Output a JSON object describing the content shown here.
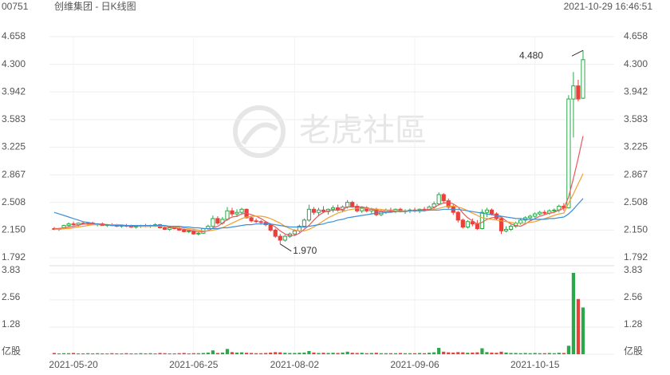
{
  "header": {
    "code": "00751",
    "title": "创维集团 - 日K线图",
    "time": "2021-10-29 16:46:51"
  },
  "watermark": "老虎社區",
  "chart_data": {
    "type": "candlestick",
    "up_color": "#2ba84a",
    "down_color": "#e8403a",
    "grid": true,
    "categories": [
      null,
      null,
      null,
      null,
      "2021-05-20",
      null,
      null,
      null,
      null,
      null,
      null,
      null,
      null,
      null,
      null,
      null,
      null,
      null,
      null,
      null,
      null,
      null,
      null,
      null,
      null,
      null,
      null,
      null,
      null,
      "2021-06-25",
      null,
      null,
      null,
      null,
      null,
      null,
      null,
      null,
      null,
      null,
      null,
      null,
      null,
      null,
      null,
      null,
      null,
      null,
      null,
      null,
      "2021-08-02",
      null,
      null,
      null,
      null,
      null,
      null,
      null,
      null,
      null,
      null,
      null,
      null,
      null,
      null,
      null,
      null,
      null,
      null,
      null,
      null,
      null,
      null,
      null,
      null,
      "2021-09-06",
      null,
      null,
      null,
      null,
      null,
      null,
      null,
      null,
      null,
      null,
      null,
      null,
      null,
      null,
      null,
      null,
      null,
      null,
      null,
      null,
      null,
      null,
      null,
      null,
      "2021-10-15",
      null,
      null,
      null,
      null,
      null,
      null,
      null,
      null,
      null,
      null
    ],
    "open": [
      2.17,
      2.16,
      2.17,
      2.21,
      2.23,
      2.22,
      2.24,
      2.23,
      2.24,
      2.22,
      2.23,
      2.21,
      2.22,
      2.21,
      2.2,
      2.21,
      2.2,
      2.19,
      2.2,
      2.21,
      2.2,
      2.21,
      2.22,
      2.18,
      2.16,
      2.18,
      2.17,
      2.15,
      2.13,
      2.14,
      2.1,
      2.11,
      2.17,
      2.2,
      2.3,
      2.24,
      2.29,
      2.4,
      2.36,
      2.38,
      2.42,
      2.31,
      2.27,
      2.26,
      2.25,
      2.22,
      2.15,
      2.07,
      2.02,
      2.07,
      2.1,
      2.14,
      2.2,
      2.28,
      2.42,
      2.38,
      2.41,
      2.39,
      2.42,
      2.44,
      2.41,
      2.45,
      2.51,
      2.46,
      2.4,
      2.44,
      2.4,
      2.42,
      2.35,
      2.39,
      2.41,
      2.4,
      2.42,
      2.39,
      2.4,
      2.41,
      2.4,
      2.42,
      2.41,
      2.45,
      2.49,
      2.61,
      2.53,
      2.45,
      2.38,
      2.28,
      2.19,
      2.26,
      2.23,
      2.17,
      2.38,
      2.41,
      2.36,
      2.3,
      2.14,
      2.16,
      2.2,
      2.24,
      2.28,
      2.31,
      2.33,
      2.36,
      2.38,
      2.37,
      2.4,
      2.41,
      2.46,
      2.44,
      3.85,
      4.02,
      3.86
    ],
    "high": [
      2.19,
      2.18,
      2.22,
      2.25,
      2.26,
      2.25,
      2.26,
      2.25,
      2.26,
      2.24,
      2.25,
      2.23,
      2.24,
      2.23,
      2.22,
      2.23,
      2.22,
      2.21,
      2.22,
      2.23,
      2.22,
      2.24,
      2.23,
      2.2,
      2.19,
      2.2,
      2.19,
      2.17,
      2.16,
      2.15,
      2.13,
      2.18,
      2.22,
      2.34,
      2.33,
      2.32,
      2.45,
      2.44,
      2.42,
      2.44,
      2.43,
      2.33,
      2.3,
      2.28,
      2.27,
      2.24,
      2.17,
      2.1,
      2.09,
      2.12,
      2.16,
      2.22,
      2.3,
      2.48,
      2.45,
      2.44,
      2.46,
      2.43,
      2.47,
      2.48,
      2.47,
      2.54,
      2.53,
      2.49,
      2.46,
      2.46,
      2.44,
      2.44,
      2.41,
      2.43,
      2.44,
      2.43,
      2.44,
      2.42,
      2.43,
      2.44,
      2.43,
      2.45,
      2.47,
      2.52,
      2.64,
      2.63,
      2.56,
      2.48,
      2.4,
      2.3,
      2.28,
      2.3,
      2.28,
      2.42,
      2.44,
      2.43,
      2.38,
      2.31,
      2.2,
      2.22,
      2.26,
      2.3,
      2.33,
      2.35,
      2.38,
      2.4,
      2.41,
      2.42,
      2.43,
      2.48,
      2.5,
      3.9,
      4.2,
      4.1,
      4.48
    ],
    "low": [
      2.15,
      2.14,
      2.16,
      2.19,
      2.21,
      2.2,
      2.22,
      2.21,
      2.22,
      2.2,
      2.21,
      2.19,
      2.2,
      2.19,
      2.18,
      2.19,
      2.18,
      2.17,
      2.18,
      2.19,
      2.18,
      2.19,
      2.17,
      2.15,
      2.14,
      2.16,
      2.14,
      2.12,
      2.11,
      2.09,
      2.08,
      2.1,
      2.15,
      2.19,
      2.22,
      2.22,
      2.27,
      2.33,
      2.32,
      2.36,
      2.3,
      2.25,
      2.24,
      2.22,
      2.2,
      2.13,
      2.05,
      1.97,
      2.0,
      2.05,
      2.08,
      2.12,
      2.18,
      2.26,
      2.35,
      2.33,
      2.37,
      2.35,
      2.38,
      2.39,
      2.38,
      2.43,
      2.44,
      2.38,
      2.37,
      2.38,
      2.36,
      2.33,
      2.33,
      2.36,
      2.38,
      2.37,
      2.38,
      2.36,
      2.37,
      2.38,
      2.37,
      2.39,
      2.4,
      2.43,
      2.47,
      2.5,
      2.42,
      2.35,
      2.25,
      2.17,
      2.17,
      2.2,
      2.15,
      2.16,
      2.32,
      2.34,
      2.28,
      2.1,
      2.12,
      2.14,
      2.18,
      2.22,
      2.25,
      2.28,
      2.31,
      2.34,
      2.35,
      2.35,
      2.38,
      2.38,
      2.4,
      2.43,
      3.35,
      3.82,
      3.85
    ],
    "close": [
      2.16,
      2.17,
      2.21,
      2.23,
      2.22,
      2.24,
      2.23,
      2.24,
      2.22,
      2.23,
      2.21,
      2.22,
      2.21,
      2.2,
      2.21,
      2.2,
      2.19,
      2.2,
      2.21,
      2.2,
      2.21,
      2.22,
      2.18,
      2.16,
      2.18,
      2.17,
      2.15,
      2.13,
      2.14,
      2.1,
      2.11,
      2.17,
      2.2,
      2.3,
      2.24,
      2.29,
      2.4,
      2.36,
      2.38,
      2.42,
      2.31,
      2.27,
      2.26,
      2.25,
      2.22,
      2.15,
      2.07,
      2.02,
      2.07,
      2.1,
      2.14,
      2.2,
      2.28,
      2.42,
      2.38,
      2.41,
      2.39,
      2.42,
      2.44,
      2.41,
      2.45,
      2.51,
      2.46,
      2.4,
      2.44,
      2.4,
      2.42,
      2.35,
      2.39,
      2.41,
      2.4,
      2.42,
      2.39,
      2.4,
      2.41,
      2.4,
      2.42,
      2.41,
      2.45,
      2.49,
      2.61,
      2.53,
      2.45,
      2.38,
      2.28,
      2.19,
      2.26,
      2.23,
      2.17,
      2.38,
      2.41,
      2.36,
      2.3,
      2.14,
      2.16,
      2.2,
      2.24,
      2.28,
      2.31,
      2.33,
      2.36,
      2.38,
      2.37,
      2.4,
      2.41,
      2.46,
      2.44,
      3.85,
      4.02,
      3.85,
      4.36
    ],
    "volume": [
      0.06,
      0.04,
      0.05,
      0.05,
      0.06,
      0.04,
      0.04,
      0.05,
      0.04,
      0.05,
      0.04,
      0.04,
      0.05,
      0.04,
      0.04,
      0.05,
      0.04,
      0.04,
      0.05,
      0.04,
      0.05,
      0.04,
      0.06,
      0.05,
      0.04,
      0.04,
      0.05,
      0.06,
      0.04,
      0.05,
      0.05,
      0.06,
      0.08,
      0.18,
      0.06,
      0.08,
      0.25,
      0.1,
      0.08,
      0.09,
      0.07,
      0.06,
      0.05,
      0.05,
      0.06,
      0.08,
      0.1,
      0.09,
      0.07,
      0.06,
      0.06,
      0.07,
      0.08,
      0.15,
      0.08,
      0.06,
      0.07,
      0.06,
      0.07,
      0.06,
      0.08,
      0.12,
      0.07,
      0.06,
      0.07,
      0.05,
      0.06,
      0.07,
      0.05,
      0.05,
      0.05,
      0.05,
      0.06,
      0.05,
      0.05,
      0.05,
      0.06,
      0.05,
      0.07,
      0.09,
      0.3,
      0.12,
      0.09,
      0.08,
      0.1,
      0.09,
      0.07,
      0.08,
      0.09,
      0.28,
      0.1,
      0.08,
      0.07,
      0.12,
      0.08,
      0.06,
      0.06,
      0.05,
      0.06,
      0.05,
      0.06,
      0.05,
      0.05,
      0.06,
      0.05,
      0.07,
      0.06,
      0.4,
      3.83,
      2.6,
      2.2
    ],
    "ma_lines": [
      {
        "color": "#e8585a",
        "values": [
          2.17,
          2.17,
          2.18,
          2.19,
          2.2,
          2.21,
          2.23,
          2.23,
          2.23,
          2.23,
          2.23,
          2.22,
          2.22,
          2.21,
          2.21,
          2.21,
          2.2,
          2.2,
          2.2,
          2.2,
          2.2,
          2.21,
          2.2,
          2.2,
          2.19,
          2.18,
          2.17,
          2.16,
          2.15,
          2.14,
          2.13,
          2.13,
          2.14,
          2.18,
          2.2,
          2.24,
          2.29,
          2.32,
          2.33,
          2.36,
          2.37,
          2.35,
          2.33,
          2.3,
          2.26,
          2.23,
          2.19,
          2.14,
          2.1,
          2.08,
          2.08,
          2.11,
          2.16,
          2.21,
          2.28,
          2.34,
          2.38,
          2.4,
          2.41,
          2.41,
          2.42,
          2.45,
          2.45,
          2.45,
          2.45,
          2.44,
          2.42,
          2.4,
          2.4,
          2.39,
          2.39,
          2.4,
          2.4,
          2.4,
          2.4,
          2.4,
          2.41,
          2.41,
          2.42,
          2.44,
          2.48,
          2.5,
          2.51,
          2.49,
          2.45,
          2.37,
          2.31,
          2.27,
          2.23,
          2.25,
          2.29,
          2.31,
          2.32,
          2.32,
          2.27,
          2.23,
          2.21,
          2.2,
          2.23,
          2.27,
          2.3,
          2.33,
          2.35,
          2.37,
          2.38,
          2.41,
          2.43,
          2.58,
          2.82,
          3.08,
          3.37
        ]
      },
      {
        "color": "#f0a030",
        "values": [
          2.16,
          2.16,
          2.17,
          2.17,
          2.18,
          2.19,
          2.2,
          2.21,
          2.22,
          2.22,
          2.22,
          2.22,
          2.22,
          2.22,
          2.22,
          2.21,
          2.21,
          2.21,
          2.2,
          2.2,
          2.2,
          2.2,
          2.2,
          2.2,
          2.2,
          2.19,
          2.19,
          2.18,
          2.17,
          2.16,
          2.15,
          2.14,
          2.14,
          2.15,
          2.16,
          2.18,
          2.21,
          2.24,
          2.27,
          2.3,
          2.32,
          2.33,
          2.33,
          2.33,
          2.32,
          2.3,
          2.27,
          2.24,
          2.2,
          2.17,
          2.15,
          2.14,
          2.14,
          2.16,
          2.19,
          2.23,
          2.27,
          2.31,
          2.34,
          2.37,
          2.39,
          2.41,
          2.42,
          2.43,
          2.43,
          2.43,
          2.43,
          2.42,
          2.42,
          2.41,
          2.41,
          2.4,
          2.4,
          2.4,
          2.4,
          2.4,
          2.4,
          2.4,
          2.41,
          2.42,
          2.43,
          2.45,
          2.46,
          2.46,
          2.45,
          2.43,
          2.4,
          2.37,
          2.34,
          2.31,
          2.3,
          2.29,
          2.28,
          2.27,
          2.26,
          2.25,
          2.24,
          2.24,
          2.24,
          2.25,
          2.26,
          2.28,
          2.3,
          2.32,
          2.34,
          2.36,
          2.37,
          2.5,
          2.62,
          2.75,
          2.88
        ]
      },
      {
        "color": "#3d8fd9",
        "values": [
          2.38,
          2.36,
          2.34,
          2.32,
          2.3,
          2.28,
          2.26,
          2.25,
          2.24,
          2.23,
          2.22,
          2.22,
          2.21,
          2.21,
          2.21,
          2.21,
          2.21,
          2.21,
          2.21,
          2.21,
          2.21,
          2.21,
          2.21,
          2.21,
          2.2,
          2.2,
          2.2,
          2.19,
          2.19,
          2.18,
          2.18,
          2.17,
          2.17,
          2.17,
          2.17,
          2.18,
          2.18,
          2.19,
          2.2,
          2.21,
          2.22,
          2.22,
          2.23,
          2.23,
          2.23,
          2.23,
          2.22,
          2.21,
          2.2,
          2.19,
          2.19,
          2.19,
          2.19,
          2.2,
          2.21,
          2.22,
          2.23,
          2.25,
          2.26,
          2.28,
          2.29,
          2.31,
          2.32,
          2.33,
          2.34,
          2.35,
          2.36,
          2.37,
          2.37,
          2.38,
          2.38,
          2.39,
          2.39,
          2.39,
          2.4,
          2.4,
          2.4,
          2.4,
          2.41,
          2.41,
          2.41,
          2.42,
          2.42,
          2.42,
          2.42,
          2.41,
          2.4,
          2.39,
          2.38,
          2.37,
          2.36,
          2.35,
          2.34,
          2.33,
          2.32,
          2.31,
          2.3,
          2.3,
          2.29,
          2.29,
          2.29,
          2.29,
          2.29,
          2.3,
          2.3,
          2.31,
          2.32,
          2.36,
          2.42,
          2.49,
          2.56
        ]
      }
    ],
    "ylim": [
      1.792,
      4.658
    ],
    "yticks": [
      4.658,
      {
        "value": 4.3,
        "label": "4.300"
      },
      3.942,
      3.583,
      3.225,
      2.867,
      2.508,
      {
        "value": 2.15,
        "label": "2.150"
      },
      1.792
    ],
    "y2lim": [
      0,
      3.83
    ],
    "y2ticks": [
      3.83,
      2.56,
      1.28,
      {
        "value": 0,
        "label": "亿股"
      }
    ],
    "annotations": [
      {
        "value": 4.48,
        "label": "4.480"
      },
      {
        "value": 1.97,
        "label": "1.970"
      }
    ]
  }
}
